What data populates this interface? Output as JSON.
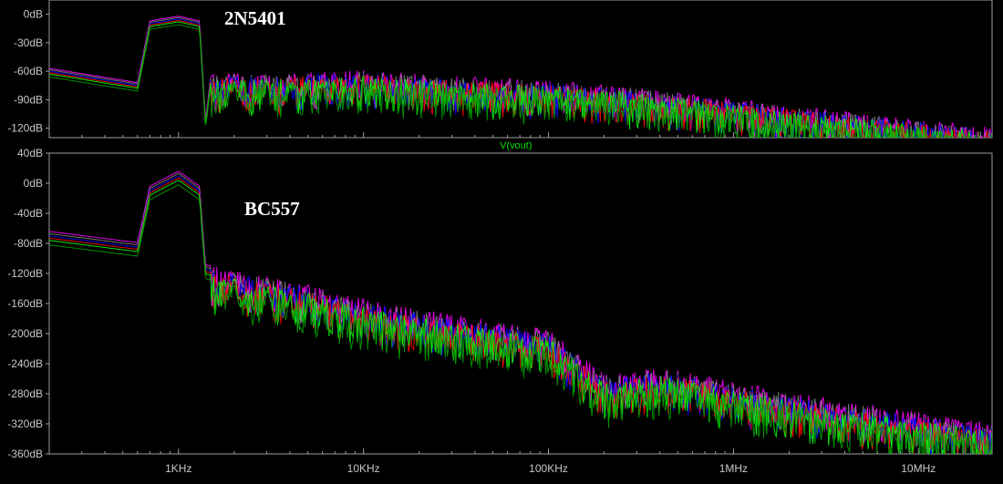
{
  "chart_data": [
    {
      "type": "line",
      "title": "",
      "annotation": "2N5401",
      "trace_label": "",
      "xscale": "log",
      "xlim": [
        200,
        25000000
      ],
      "ylim": [
        -130,
        15
      ],
      "yticks": [
        0,
        -30,
        -60,
        -90,
        -120
      ],
      "ytick_labels": [
        "0dB",
        "-30dB",
        "-60dB",
        "-90dB",
        "-120dB"
      ],
      "xticks": [
        1000,
        10000,
        100000,
        1000000,
        10000000
      ],
      "xtick_labels": [],
      "grid": false,
      "colors": [
        "#ff00ff",
        "#7f7f7f",
        "#0000ff",
        "#ff0000",
        "#00ff00",
        "#00a000"
      ],
      "series": [
        {
          "x": [
            200,
            600,
            700,
            1000,
            1300,
            1400,
            1500,
            3000,
            10000,
            30000,
            100000,
            300000,
            1000000,
            3000000,
            10000000,
            25000000
          ],
          "y": [
            -60,
            -75,
            -10,
            -5,
            -10,
            -115,
            -65,
            -65,
            -62,
            -68,
            -72,
            -80,
            -92,
            -103,
            -113,
            -122
          ]
        }
      ]
    },
    {
      "type": "line",
      "title": "",
      "annotation": "BC557",
      "trace_label": "V(vout)",
      "xscale": "log",
      "xlim": [
        200,
        25000000
      ],
      "ylim": [
        -360,
        40
      ],
      "yticks": [
        40,
        0,
        -40,
        -80,
        -120,
        -160,
        -200,
        -240,
        -280,
        -320,
        -360
      ],
      "ytick_labels": [
        "40dB",
        "0dB",
        "-40dB",
        "-80dB",
        "-120dB",
        "-160dB",
        "-200dB",
        "-240dB",
        "-280dB",
        "-320dB",
        "-360dB"
      ],
      "xticks": [
        1000,
        10000,
        100000,
        1000000,
        10000000
      ],
      "xtick_labels": [
        "1KHz",
        "10KHz",
        "100KHz",
        "1MHz",
        "10MHz"
      ],
      "grid": false,
      "colors": [
        "#ff00ff",
        "#7f7f7f",
        "#0000ff",
        "#ff0000",
        "#00ff00",
        "#00a000"
      ],
      "series": [
        {
          "x": [
            200,
            600,
            700,
            1000,
            1300,
            1400,
            2000,
            5000,
            10000,
            30000,
            100000,
            200000,
            400000,
            1000000,
            3000000,
            10000000,
            25000000
          ],
          "y": [
            -70,
            -85,
            -10,
            10,
            -10,
            -115,
            -120,
            -140,
            -160,
            -180,
            -200,
            -260,
            -250,
            -270,
            -290,
            -310,
            -325
          ]
        }
      ]
    }
  ]
}
